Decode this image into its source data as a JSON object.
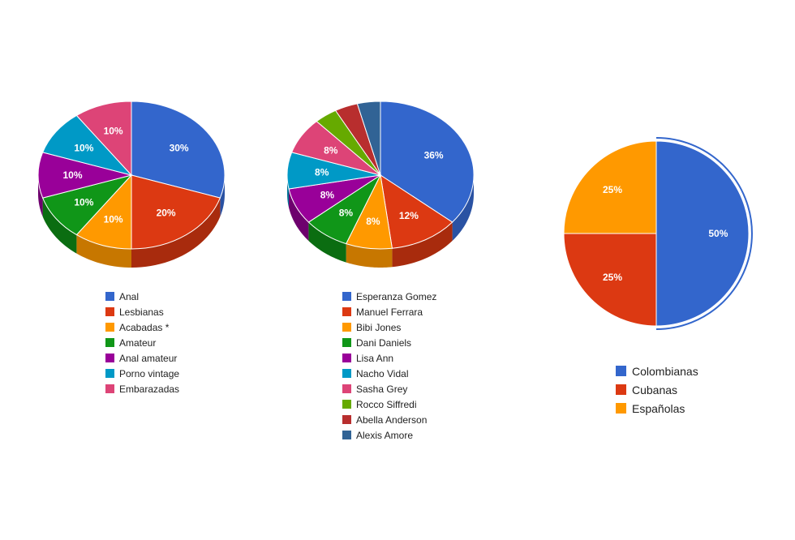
{
  "chart_data": [
    {
      "type": "pie",
      "style": "3d",
      "title": "",
      "slices": [
        {
          "label": "Anal",
          "value": 30,
          "text": "30%",
          "color": "#3366cc",
          "side": "#2a52a3"
        },
        {
          "label": "Lesbianas",
          "value": 20,
          "text": "20%",
          "color": "#dc3912",
          "side": "#a82b0d"
        },
        {
          "label": "Acabadas *",
          "value": 10,
          "text": "10%",
          "color": "#ff9900",
          "side": "#c77700"
        },
        {
          "label": "Amateur",
          "value": 10,
          "text": "10%",
          "color": "#109618",
          "side": "#0b6d11"
        },
        {
          "label": "Anal amateur",
          "value": 10,
          "text": "10%",
          "color": "#990099",
          "side": "#6e006e"
        },
        {
          "label": "Porno vintage",
          "value": 10,
          "text": "10%",
          "color": "#0099c6",
          "side": "#007395"
        },
        {
          "label": "Embarazadas",
          "value": 10,
          "text": "10%",
          "color": "#dd4477",
          "side": "#a8325a"
        }
      ],
      "legend": "bottom"
    },
    {
      "type": "pie",
      "style": "3d",
      "title": "",
      "slices": [
        {
          "label": "Esperanza Gomez",
          "value": 36,
          "text": "36%",
          "color": "#3366cc",
          "side": "#2a52a3"
        },
        {
          "label": "Manuel Ferrara",
          "value": 12,
          "text": "12%",
          "color": "#dc3912",
          "side": "#a82b0d"
        },
        {
          "label": "Bibi Jones",
          "value": 8,
          "text": "8%",
          "color": "#ff9900",
          "side": "#c77700"
        },
        {
          "label": "Dani Daniels",
          "value": 8,
          "text": "8%",
          "color": "#109618",
          "side": "#0b6d11"
        },
        {
          "label": "Lisa Ann",
          "value": 8,
          "text": "8%",
          "color": "#990099",
          "side": "#6e006e"
        },
        {
          "label": "Nacho Vidal",
          "value": 8,
          "text": "8%",
          "color": "#0099c6",
          "side": "#007395"
        },
        {
          "label": "Sasha Grey",
          "value": 8,
          "text": "8%",
          "color": "#dd4477",
          "side": "#a8325a"
        },
        {
          "label": "Rocco Siffredi",
          "value": 4,
          "text": "",
          "color": "#66aa00",
          "side": "#4d8000"
        },
        {
          "label": "Abella Anderson",
          "value": 4,
          "text": "",
          "color": "#b82e2e",
          "side": "#8a2222"
        },
        {
          "label": "Alexis Amore",
          "value": 4,
          "text": "",
          "color": "#316395",
          "side": "#244a70"
        }
      ],
      "legend": "bottom"
    },
    {
      "type": "pie",
      "style": "flat",
      "title": "",
      "slices": [
        {
          "label": "Colombianas",
          "value": 50,
          "text": "50%",
          "color": "#3366cc",
          "highlighted": true
        },
        {
          "label": "Cubanas",
          "value": 25,
          "text": "25%",
          "color": "#dc3912"
        },
        {
          "label": "Españolas",
          "value": 25,
          "text": "25%",
          "color": "#ff9900"
        }
      ],
      "legend": "bottom"
    }
  ]
}
